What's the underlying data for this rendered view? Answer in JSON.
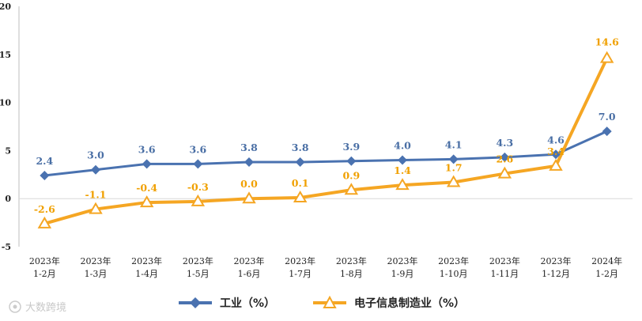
{
  "chart_data": {
    "type": "line",
    "categories": [
      [
        "2023年",
        "1-2月"
      ],
      [
        "2023年",
        "1-3月"
      ],
      [
        "2023年",
        "1-4月"
      ],
      [
        "2023年",
        "1-5月"
      ],
      [
        "2023年",
        "1-6月"
      ],
      [
        "2023年",
        "1-7月"
      ],
      [
        "2023年",
        "1-8月"
      ],
      [
        "2023年",
        "1-9月"
      ],
      [
        "2023年",
        "1-10月"
      ],
      [
        "2023年",
        "1-11月"
      ],
      [
        "2023年",
        "1-12月"
      ],
      [
        "2024年",
        "1-2月"
      ]
    ],
    "series": [
      {
        "name": "工业（%）",
        "color": "#4a72b0",
        "marker": "diamond",
        "values": [
          2.4,
          3.0,
          3.6,
          3.6,
          3.8,
          3.8,
          3.9,
          4.0,
          4.1,
          4.3,
          4.6,
          7.0
        ],
        "labels": [
          "2.4",
          "3.0",
          "3.6",
          "3.6",
          "3.8",
          "3.8",
          "3.9",
          "4.0",
          "4.1",
          "4.3",
          "4.6",
          "7.0"
        ]
      },
      {
        "name": "电子信息制造业（%）",
        "color": "#f5a623",
        "marker": "triangle",
        "values": [
          -2.6,
          -1.1,
          -0.4,
          -0.3,
          0.0,
          0.1,
          0.9,
          1.4,
          1.7,
          2.6,
          3.4,
          14.6
        ],
        "labels": [
          "-2.6",
          "-1.1",
          "-0.4",
          "-0.3",
          "0.0",
          "0.1",
          "0.9",
          "1.4",
          "1.7",
          "2.6",
          "3.4",
          "14.6"
        ]
      }
    ],
    "ylim": [
      -5,
      20
    ],
    "yticks": [
      "-5",
      "0",
      "5",
      "10",
      "15",
      "20"
    ],
    "grid": false,
    "legend": "bottom-center"
  },
  "legend": {
    "industry": "工业（%）",
    "electronics": "电子信息制造业（%）"
  },
  "watermark": {
    "text": "大数跨境",
    "icon": "watermark-logo-icon"
  }
}
